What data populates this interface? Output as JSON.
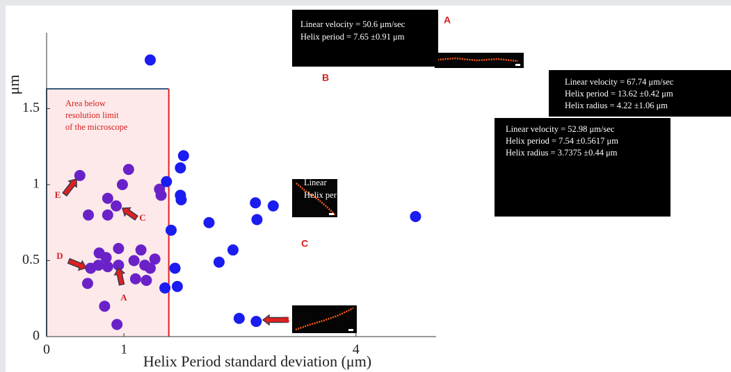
{
  "chart_data": {
    "type": "scatter",
    "xlabel": "Helix Period standard deviation (μm)",
    "ylabel": "μm",
    "xlim": [
      0,
      5
    ],
    "ylim": [
      0,
      2
    ],
    "xticks": [
      0,
      1,
      4
    ],
    "yticks": [
      0,
      0.5,
      1,
      1.5
    ],
    "series": [
      {
        "color": "#6a22c8",
        "x": [
          0.43,
          1.06,
          0.98,
          1.46,
          1.48,
          0.54,
          0.79,
          0.9,
          0.79,
          0.68,
          0.77,
          0.93,
          1.22,
          1.13,
          1.4,
          0.57,
          0.67,
          0.79,
          0.93,
          1.27,
          1.34,
          1.15,
          1.29,
          0.53,
          0.75,
          0.91
        ],
        "values": [
          1.06,
          1.1,
          1.0,
          0.97,
          0.93,
          0.8,
          0.91,
          0.86,
          0.8,
          0.55,
          0.52,
          0.58,
          0.57,
          0.5,
          0.51,
          0.45,
          0.47,
          0.46,
          0.47,
          0.47,
          0.45,
          0.38,
          0.37,
          0.35,
          0.2,
          0.08
        ]
      },
      {
        "color": "#1a1cf0",
        "x": [
          1.34,
          1.77,
          1.73,
          1.55,
          1.73,
          1.74,
          1.61,
          2.1,
          2.7,
          2.93,
          2.72,
          2.41,
          2.23,
          1.66,
          1.69,
          1.53,
          2.49,
          2.71,
          4.77
        ],
        "values": [
          1.82,
          1.19,
          1.11,
          1.02,
          0.93,
          0.9,
          0.7,
          0.75,
          0.88,
          0.86,
          0.77,
          0.57,
          0.49,
          0.45,
          0.33,
          0.32,
          0.12,
          0.1,
          0.79
        ]
      }
    ],
    "resolution_region": {
      "x": [
        0,
        1.58
      ],
      "y": [
        0,
        1.63
      ],
      "label": [
        "Area below",
        "resolution limit",
        "of the microscope"
      ]
    },
    "point_labels": [
      "E",
      "C",
      "D",
      "A",
      "B"
    ],
    "info_boxes": [
      {
        "letter": "A",
        "lines": [
          "Linear velocity = 50.6   μm/sec",
          "Helix period = 7.65  ±0.91    μm"
        ]
      },
      {
        "lines": [
          "Linear velocity = 67.74   μm/sec",
          "Helix period = 13.62  ±0.42   μm",
          "Helix radius = 4.22  ±1.06   μm"
        ]
      },
      {
        "letter": "B",
        "lines": [
          "Linear velocity = 52.98   μm/sec",
          "Helix period = 7.54  ±0.5617    μm",
          "Helix radius = 3.7375   ±0.44    μm"
        ]
      },
      {
        "letter": "C",
        "lines": [
          "Linear",
          "Helix per"
        ]
      }
    ]
  }
}
